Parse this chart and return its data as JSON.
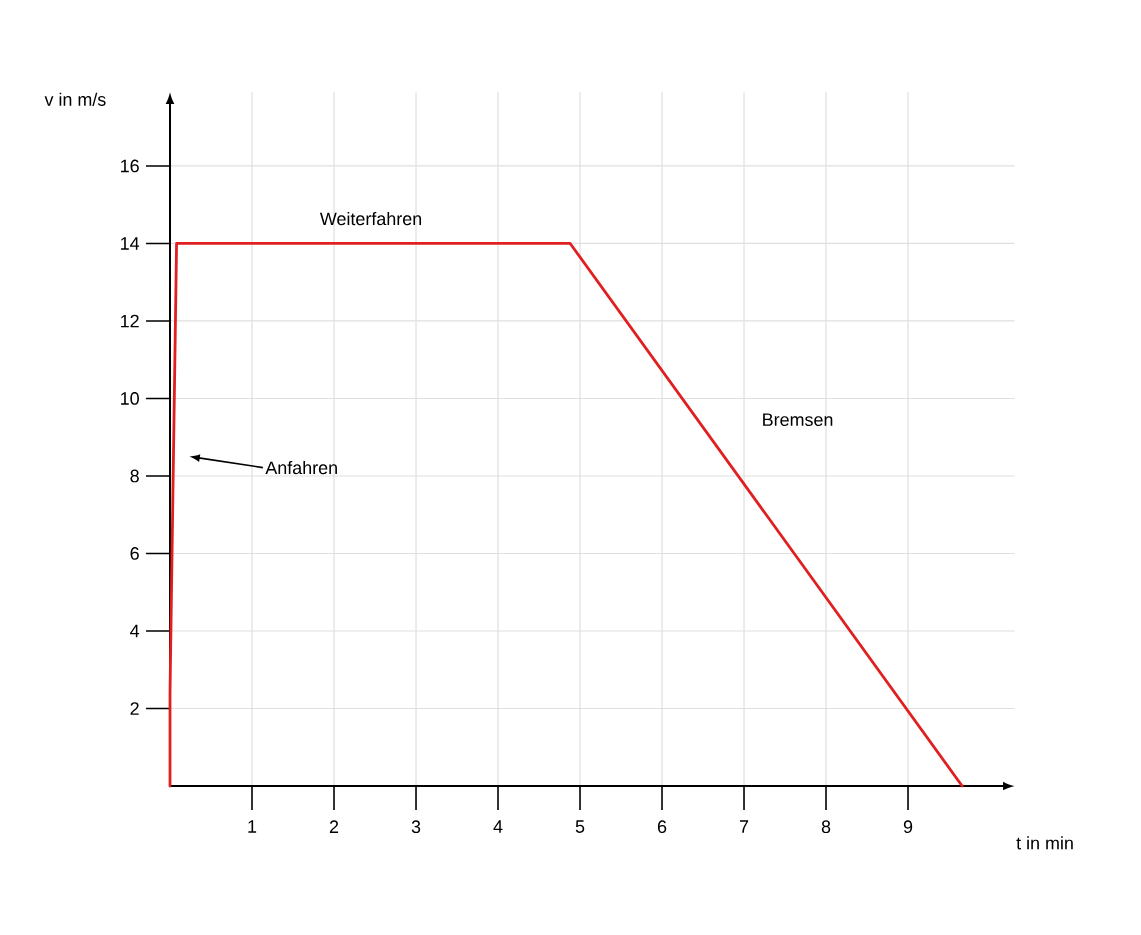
{
  "chart_data": {
    "type": "line",
    "xlabel": "t in min",
    "ylabel": "v in m/s",
    "x": [
      0,
      0,
      0.08,
      4.88,
      9.66
    ],
    "series": [
      {
        "color": "#e02020",
        "values": [
          0,
          2.4,
          14,
          14,
          0
        ]
      }
    ],
    "xlim": [
      0,
      10.3
    ],
    "ylim": [
      0,
      17.9
    ],
    "xticks": [
      1,
      2,
      3,
      4,
      5,
      6,
      7,
      8,
      9
    ],
    "yticks": [
      2,
      4,
      6,
      8,
      10,
      12,
      14,
      16
    ],
    "grid": true,
    "marker": "none",
    "line_style": "solid",
    "annotations": [
      "Weiterfahren",
      "Anfahren",
      "Bremsen"
    ]
  }
}
